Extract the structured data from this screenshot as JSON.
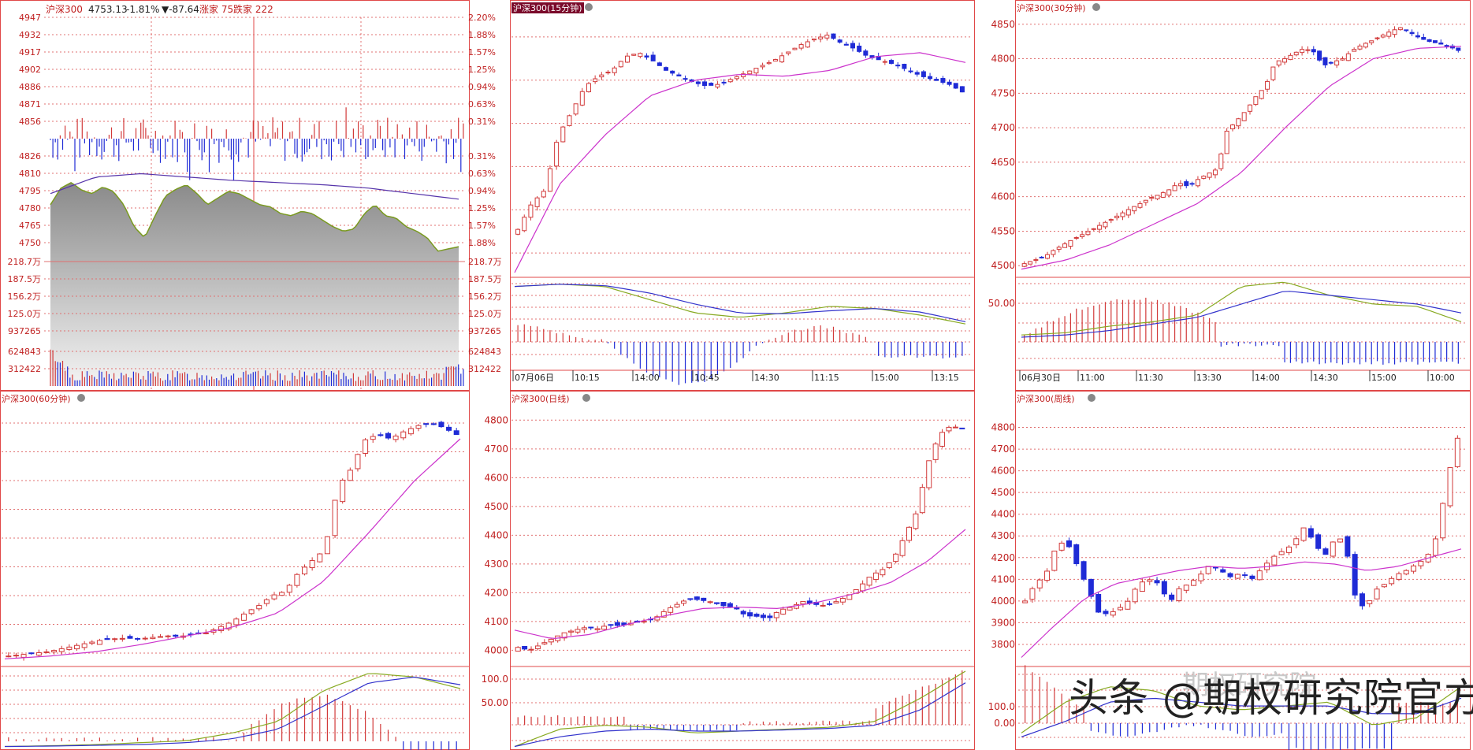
{
  "colors": {
    "up": "#d23a3a",
    "down": "#1f2bd6",
    "grid": "#e07070",
    "text": "#c02020",
    "ma": "#cc33cc",
    "dif": "#88aa22",
    "dea": "#3333cc",
    "area": "#9a9a9a",
    "price": "#7a9a20",
    "frame": "#e04848"
  },
  "watermark": {
    "main": "头条 @期权研究院官方",
    "faint": "期权研究院"
  },
  "charts": [
    {
      "id": "intraday",
      "title": "沪深300",
      "price": "4753.13",
      "change_pct": "-1.81%",
      "change": "▼-87.64",
      "up_label": "涨家 75",
      "down_label": "跌家 222",
      "top_left_ticks": [
        "4947",
        "4932",
        "4917",
        "4902",
        "4886",
        "4871",
        "4856"
      ],
      "top_right_ticks": [
        "2.20%",
        "1.88%",
        "1.57%",
        "1.25%",
        "0.94%",
        "0.63%",
        "0.31%"
      ],
      "mid_left_ticks": [
        "4826",
        "4810",
        "4795",
        "4780",
        "4765",
        "4750"
      ],
      "mid_right_ticks": [
        "0.31%",
        "0.63%",
        "0.94%",
        "1.25%",
        "1.57%",
        "1.88%"
      ],
      "vol_left_ticks": [
        "218.7万",
        "187.5万",
        "156.2万",
        "125.0万",
        "937265",
        "624843",
        "312422"
      ],
      "vol_right_ticks": [
        "218.7万",
        "187.5万",
        "156.2万",
        "125.0万",
        "937265",
        "624843",
        "312422"
      ]
    },
    {
      "id": "m15",
      "title": "沪深300(15分钟)",
      "highlight": true,
      "x_labels": [
        "07月06日",
        "10:15",
        "14:00",
        "10:45",
        "14:30",
        "11:15",
        "15:00",
        "13:15"
      ],
      "y_ticks": [],
      "macd_ticks": [],
      "chart_data": {
        "type": "candlestick",
        "ohlc_close": [
          4722,
          4735,
          4742,
          4770,
          4782,
          4795,
          4800,
          4803,
          4810,
          4812,
          4808,
          4803,
          4800,
          4797,
          4795,
          4796,
          4799,
          4802,
          4805,
          4808,
          4812,
          4816,
          4819,
          4821,
          4817,
          4814,
          4810,
          4808,
          4806,
          4803,
          4800,
          4798,
          4796,
          4792
        ],
        "ma": [
          4700,
          4745,
          4770,
          4790,
          4798,
          4801,
          4800,
          4803,
          4810,
          4812,
          4807
        ]
      }
    },
    {
      "id": "m30",
      "title": "沪深300(30分钟)",
      "x_labels": [
        "06月30日",
        "11:00",
        "11:30",
        "13:30",
        "14:00",
        "14:30",
        "15:00",
        "10:00"
      ],
      "y_ticks": [
        "4850",
        "4800",
        "4750",
        "4700",
        "4650",
        "4600",
        "4550",
        "4500"
      ],
      "macd_ticks": [
        "50.00"
      ],
      "chart_data": {
        "type": "candlestick",
        "ylim": [
          4490,
          4860
        ],
        "close": [
          4503,
          4508,
          4512,
          4522,
          4530,
          4538,
          4545,
          4552,
          4560,
          4567,
          4575,
          4583,
          4590,
          4598,
          4603,
          4610,
          4620,
          4615,
          4625,
          4633,
          4640,
          4695,
          4710,
          4725,
          4745,
          4760,
          4795,
          4800,
          4808,
          4815,
          4810,
          4790,
          4795,
          4800,
          4812,
          4820,
          4826,
          4833,
          4840,
          4845,
          4838,
          4830,
          4825,
          4822,
          4818,
          4812
        ],
        "ma": [
          4495,
          4508,
          4530,
          4560,
          4590,
          4635,
          4700,
          4760,
          4800,
          4815,
          4818
        ]
      }
    },
    {
      "id": "m60",
      "title": "沪深300(60分钟)",
      "x_labels": [],
      "y_ticks": [],
      "macd_ticks": [],
      "chart_data": {
        "type": "candlestick",
        "close": [
          3990,
          3995,
          4000,
          4005,
          4015,
          4025,
          4035,
          4045,
          4050,
          4052,
          4050,
          4055,
          4060,
          4058,
          4065,
          4070,
          4090,
          4110,
          4140,
          4165,
          4200,
          4215,
          4280,
          4320,
          4360,
          4580,
          4640,
          4740,
          4760,
          4745,
          4770,
          4790,
          4800,
          4785,
          4760
        ],
        "ma": [
          3980,
          3990,
          4005,
          4030,
          4060,
          4090,
          4140,
          4250,
          4420,
          4600,
          4745
        ]
      }
    },
    {
      "id": "daily",
      "title": "沪深300(日线)",
      "x_labels": [],
      "y_ticks": [
        "4800",
        "4700",
        "4600",
        "4500",
        "4400",
        "4300",
        "4200",
        "4100",
        "4000"
      ],
      "macd_ticks": [
        "100.0",
        "50.00"
      ],
      "chart_data": {
        "type": "candlestick",
        "ylim": [
          3960,
          4820
        ],
        "close": [
          4010,
          4000,
          4020,
          4040,
          4060,
          4070,
          4080,
          4075,
          4090,
          4085,
          4095,
          4100,
          4110,
          4140,
          4160,
          4180,
          4175,
          4168,
          4155,
          4150,
          4120,
          4118,
          4110,
          4140,
          4150,
          4170,
          4160,
          4155,
          4170,
          4190,
          4220,
          4260,
          4280,
          4320,
          4400,
          4480,
          4650,
          4750,
          4780,
          4770
        ],
        "ma": [
          4070,
          4040,
          4055,
          4090,
          4120,
          4145,
          4150,
          4145,
          4165,
          4195,
          4235,
          4310,
          4420
        ]
      }
    },
    {
      "id": "weekly",
      "title": "沪深300(周线)",
      "x_labels": [],
      "y_ticks": [
        "4800",
        "4700",
        "4600",
        "4500",
        "4400",
        "4300",
        "4200",
        "4100",
        "4000",
        "3900",
        "3800"
      ],
      "macd_ticks": [
        "100.0",
        "0.00"
      ],
      "chart_data": {
        "type": "candlestick",
        "ylim": [
          3720,
          4860
        ],
        "close": [
          4000,
          4080,
          4120,
          4250,
          4280,
          4170,
          4070,
          3950,
          3940,
          3960,
          4000,
          4080,
          4100,
          4080,
          3990,
          4060,
          4080,
          4120,
          4170,
          4140,
          4110,
          4130,
          4100,
          4150,
          4200,
          4230,
          4260,
          4340,
          4280,
          4200,
          4280,
          4290,
          4030,
          3960,
          4050,
          4080,
          4120,
          4140,
          4170,
          4200,
          4300,
          4560,
          4750
        ],
        "ma": [
          3740,
          3880,
          4010,
          4080,
          4110,
          4140,
          4160,
          4150,
          4160,
          4180,
          4170,
          4140,
          4160,
          4200,
          4240
        ]
      }
    }
  ]
}
